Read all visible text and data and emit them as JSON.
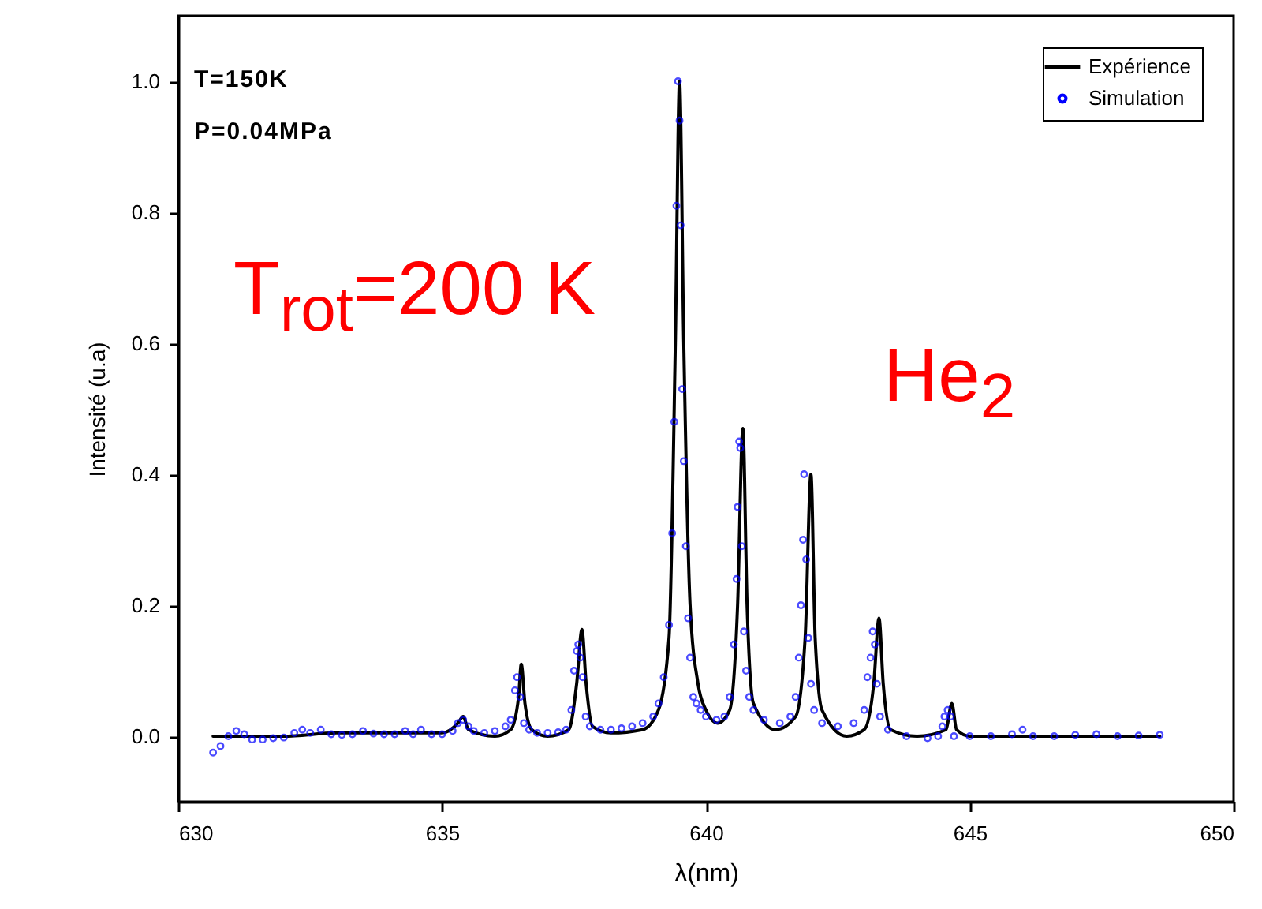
{
  "chart_data": {
    "type": "line",
    "xlabel": "λ(nm)",
    "ylabel": "Intensité (u.a)",
    "xlim": [
      630,
      650
    ],
    "xticks": [
      630,
      635,
      640,
      645,
      650
    ],
    "ylim": [
      -0.1,
      1.1
    ],
    "yticks": [
      {
        "value": 0,
        "label": "0.0"
      },
      {
        "value": 0.2,
        "label": "0.2"
      },
      {
        "value": 0.4,
        "label": "0.4"
      },
      {
        "value": 0.6,
        "label": "0.6"
      },
      {
        "value": 0.8,
        "label": "0.8"
      },
      {
        "value": 1,
        "label": "1.0"
      }
    ],
    "legend": "top right",
    "annotations": [
      "T=150K",
      "P=0.04MPa",
      "T$_{rot}$=200 K",
      "He$_{2}$"
    ],
    "series": [
      {
        "name": "Expérience",
        "type": "line",
        "color": "#000000",
        "line_style": "solid",
        "x": [
          630.66,
          632,
          633,
          634,
          635,
          635.3,
          635.4,
          635.5,
          636,
          636.3,
          636.45,
          636.5,
          636.57,
          636.7,
          637,
          637.4,
          637.55,
          637.65,
          637.73,
          637.85,
          638.2,
          638.8,
          639.1,
          639.3,
          639.42,
          639.5,
          639.58,
          639.7,
          639.85,
          640,
          640.22,
          640.45,
          640.6,
          640.7,
          640.78,
          640.9,
          641.32,
          641.7,
          641.88,
          641.99,
          642.07,
          642.2,
          642.67,
          643,
          643.18,
          643.28,
          643.36,
          643.5,
          644,
          644.55,
          644.66,
          644.75,
          645,
          648.6
        ],
        "values": [
          0,
          0,
          0.005,
          0.005,
          0.005,
          0.02,
          0.03,
          0.01,
          0,
          0.01,
          0.06,
          0.11,
          0.05,
          0.01,
          0,
          0.01,
          0.08,
          0.163,
          0.08,
          0.015,
          0.005,
          0.01,
          0.04,
          0.15,
          0.6,
          1.0,
          0.6,
          0.2,
          0.08,
          0.04,
          0.02,
          0.04,
          0.2,
          0.47,
          0.2,
          0.05,
          0.01,
          0.03,
          0.15,
          0.4,
          0.15,
          0.04,
          0,
          0.01,
          0.08,
          0.18,
          0.08,
          0.01,
          0,
          0.01,
          0.05,
          0.01,
          0,
          0
        ]
      },
      {
        "name": "Simulation",
        "type": "scatter",
        "color": "#0000ff",
        "marker": "circle",
        "x": [
          630.66,
          630.8,
          630.95,
          631.1,
          631.25,
          631.4,
          631.6,
          631.8,
          632,
          632.2,
          632.35,
          632.5,
          632.7,
          632.9,
          633.1,
          633.3,
          633.5,
          633.7,
          633.9,
          634.1,
          634.3,
          634.45,
          634.6,
          634.8,
          635,
          635.2,
          635.3,
          635.4,
          635.5,
          635.6,
          635.8,
          636,
          636.2,
          636.3,
          636.38,
          636.42,
          636.48,
          636.55,
          636.65,
          636.8,
          637,
          637.2,
          637.35,
          637.45,
          637.5,
          637.55,
          637.58,
          637.62,
          637.66,
          637.72,
          637.8,
          638,
          638.2,
          638.4,
          638.6,
          638.8,
          639,
          639.1,
          639.2,
          639.3,
          639.36,
          639.4,
          639.44,
          639.47,
          639.5,
          639.52,
          639.55,
          639.58,
          639.62,
          639.66,
          639.7,
          639.76,
          639.82,
          639.9,
          640,
          640.2,
          640.35,
          640.45,
          640.53,
          640.58,
          640.6,
          640.63,
          640.65,
          640.68,
          640.72,
          640.76,
          640.82,
          640.9,
          641.1,
          641.4,
          641.6,
          641.7,
          641.76,
          641.8,
          641.84,
          641.86,
          641.9,
          641.94,
          641.99,
          642.05,
          642.2,
          642.5,
          642.8,
          643,
          643.06,
          643.12,
          643.16,
          643.2,
          643.24,
          643.3,
          643.45,
          643.8,
          644.2,
          644.4,
          644.48,
          644.52,
          644.58,
          644.64,
          644.7,
          645,
          645.4,
          645.8,
          646,
          646.2,
          646.6,
          647,
          647.4,
          647.8,
          648.2,
          648.6
        ],
        "values": [
          -0.025,
          -0.015,
          0,
          0.008,
          0.003,
          -0.005,
          -0.005,
          -0.003,
          -0.002,
          0.005,
          0.01,
          0.005,
          0.01,
          0.003,
          0.002,
          0.003,
          0.008,
          0.004,
          0.003,
          0.003,
          0.008,
          0.003,
          0.01,
          0.003,
          0.003,
          0.008,
          0.02,
          0.025,
          0.015,
          0.008,
          0.005,
          0.008,
          0.015,
          0.025,
          0.07,
          0.09,
          0.06,
          0.02,
          0.01,
          0.005,
          0.005,
          0.006,
          0.01,
          0.04,
          0.1,
          0.13,
          0.14,
          0.12,
          0.09,
          0.03,
          0.015,
          0.01,
          0.01,
          0.012,
          0.015,
          0.02,
          0.03,
          0.05,
          0.09,
          0.17,
          0.31,
          0.48,
          0.81,
          1.0,
          0.94,
          0.78,
          0.53,
          0.42,
          0.29,
          0.18,
          0.12,
          0.06,
          0.05,
          0.04,
          0.03,
          0.025,
          0.03,
          0.06,
          0.14,
          0.24,
          0.35,
          0.45,
          0.44,
          0.29,
          0.16,
          0.1,
          0.06,
          0.04,
          0.025,
          0.02,
          0.03,
          0.06,
          0.12,
          0.2,
          0.3,
          0.4,
          0.27,
          0.15,
          0.08,
          0.04,
          0.02,
          0.015,
          0.02,
          0.04,
          0.09,
          0.12,
          0.16,
          0.14,
          0.08,
          0.03,
          0.01,
          0,
          -0.003,
          0,
          0.015,
          0.03,
          0.04,
          0.03,
          0,
          0,
          0,
          0.003,
          0.01,
          0,
          0,
          0.002,
          0.003,
          0,
          0.001,
          0.002
        ]
      }
    ]
  }
}
